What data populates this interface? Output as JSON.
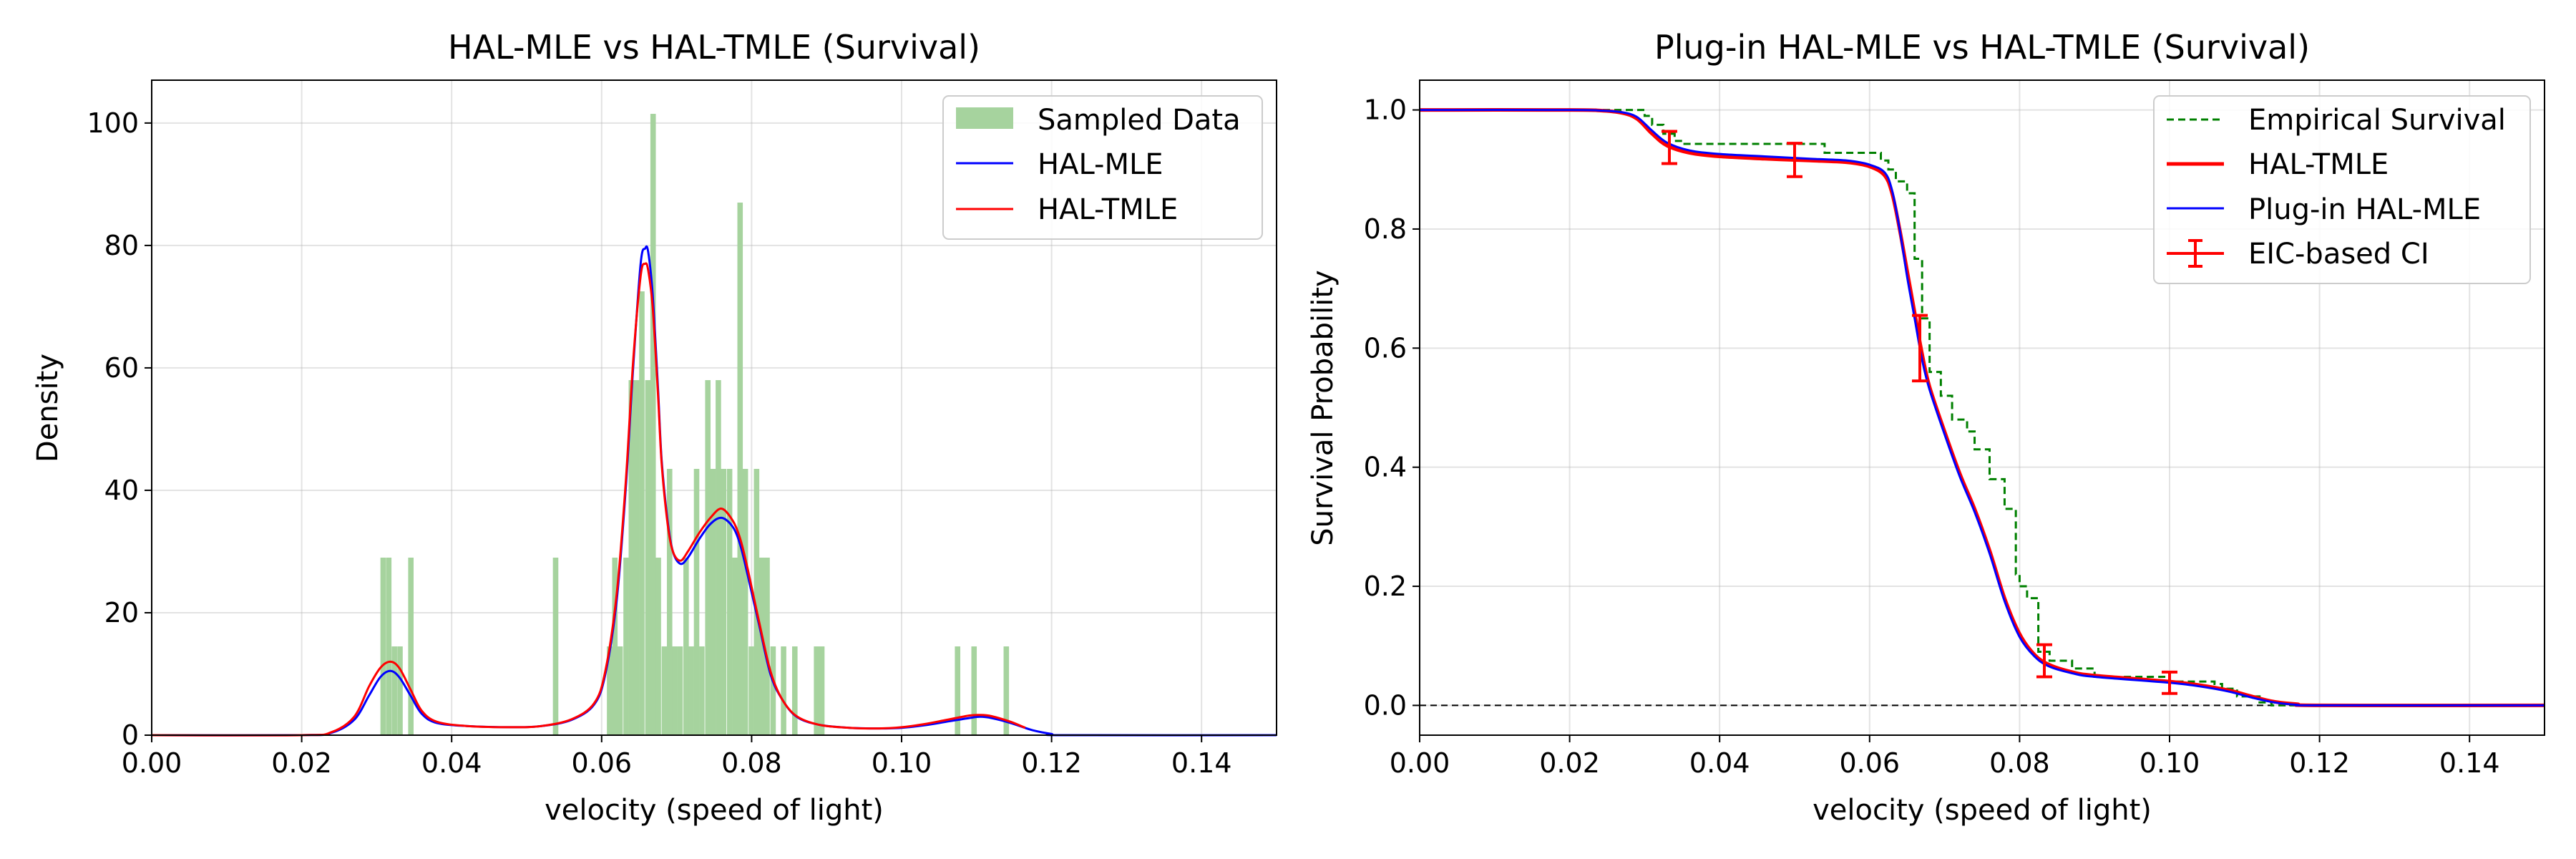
{
  "chart_data": [
    {
      "type": "histogram+line",
      "title": "HAL-MLE vs HAL-TMLE (Survival)",
      "xlabel": "velocity (speed of light)",
      "ylabel": "Density",
      "xlim": [
        0,
        0.15
      ],
      "ylim": [
        0,
        107
      ],
      "xticks": [
        "0.00",
        "0.02",
        "0.04",
        "0.06",
        "0.08",
        "0.10",
        "0.12",
        "0.14"
      ],
      "yticks": [
        "0",
        "20",
        "40",
        "60",
        "80",
        "100"
      ],
      "xtick_values": [
        0,
        0.02,
        0.04,
        0.06,
        0.08,
        0.1,
        0.12,
        0.14
      ],
      "ytick_values": [
        0,
        20,
        40,
        60,
        80,
        100
      ],
      "grid": true,
      "legend_position": "top-right",
      "legend": [
        "Sampled Data",
        "HAL-MLE",
        "HAL-TMLE"
      ],
      "colors": {
        "hist": "#a6d39e",
        "mle": "#0000ff",
        "tmle": "#ff0000"
      },
      "histogram": {
        "name": "Sampled Data",
        "bin_width": 0.000725,
        "bins": [
          {
            "x": 0.0305,
            "h": 29
          },
          {
            "x": 0.03125,
            "h": 29
          },
          {
            "x": 0.032,
            "h": 14.5
          },
          {
            "x": 0.03275,
            "h": 14.5
          },
          {
            "x": 0.0342,
            "h": 29
          },
          {
            "x": 0.0535,
            "h": 29
          },
          {
            "x": 0.0607,
            "h": 14.5
          },
          {
            "x": 0.0614,
            "h": 29
          },
          {
            "x": 0.0621,
            "h": 14.5
          },
          {
            "x": 0.0629,
            "h": 29
          },
          {
            "x": 0.0636,
            "h": 58
          },
          {
            "x": 0.0643,
            "h": 58
          },
          {
            "x": 0.065,
            "h": 72.5
          },
          {
            "x": 0.0658,
            "h": 58
          },
          {
            "x": 0.0665,
            "h": 101.5
          },
          {
            "x": 0.0672,
            "h": 29
          },
          {
            "x": 0.068,
            "h": 14.5
          },
          {
            "x": 0.0687,
            "h": 43.5
          },
          {
            "x": 0.0694,
            "h": 14.5
          },
          {
            "x": 0.0701,
            "h": 14.5
          },
          {
            "x": 0.0709,
            "h": 29
          },
          {
            "x": 0.0716,
            "h": 14.5
          },
          {
            "x": 0.0723,
            "h": 43.5
          },
          {
            "x": 0.073,
            "h": 14.5
          },
          {
            "x": 0.0738,
            "h": 58
          },
          {
            "x": 0.0745,
            "h": 43.5
          },
          {
            "x": 0.0752,
            "h": 58
          },
          {
            "x": 0.0759,
            "h": 43.5
          },
          {
            "x": 0.0767,
            "h": 43.5
          },
          {
            "x": 0.0774,
            "h": 29
          },
          {
            "x": 0.0781,
            "h": 87
          },
          {
            "x": 0.0788,
            "h": 43.5
          },
          {
            "x": 0.0796,
            "h": 14.5
          },
          {
            "x": 0.0803,
            "h": 43.5
          },
          {
            "x": 0.081,
            "h": 29
          },
          {
            "x": 0.0817,
            "h": 29
          },
          {
            "x": 0.0825,
            "h": 14.5
          },
          {
            "x": 0.0839,
            "h": 14.5
          },
          {
            "x": 0.0854,
            "h": 14.5
          },
          {
            "x": 0.0883,
            "h": 14.5
          },
          {
            "x": 0.089,
            "h": 14.5
          },
          {
            "x": 0.1071,
            "h": 14.5
          },
          {
            "x": 0.1093,
            "h": 14.5
          },
          {
            "x": 0.1136,
            "h": 14.5
          }
        ]
      },
      "series": [
        {
          "name": "HAL-MLE",
          "x": [
            0,
            0.02,
            0.024,
            0.027,
            0.029,
            0.0305,
            0.0318,
            0.033,
            0.0345,
            0.036,
            0.038,
            0.042,
            0.048,
            0.052,
            0.056,
            0.059,
            0.0605,
            0.062,
            0.0632,
            0.0642,
            0.0652,
            0.0658,
            0.0662,
            0.0668,
            0.0675,
            0.068,
            0.0688,
            0.0695,
            0.0705,
            0.0715,
            0.073,
            0.0745,
            0.076,
            0.0775,
            0.0785,
            0.0795,
            0.081,
            0.0825,
            0.084,
            0.086,
            0.089,
            0.093,
            0.097,
            0.1,
            0.103,
            0.106,
            0.109,
            0.1105,
            0.112,
            0.1145,
            0.1175,
            0.12,
            0.122,
            0.15
          ],
          "y": [
            0,
            0,
            0.4,
            2.5,
            6.5,
            9.5,
            10.5,
            9.5,
            6.5,
            3.5,
            2,
            1.5,
            1.3,
            1.5,
            2.5,
            5,
            10,
            22,
            40,
            60,
            77,
            79.5,
            79,
            72,
            57,
            45,
            35,
            30,
            28,
            29,
            32,
            34.5,
            35.5,
            34,
            31,
            26,
            18,
            10,
            6,
            3,
            1.7,
            1.2,
            1.1,
            1.2,
            1.6,
            2.2,
            2.8,
            3.0,
            2.8,
            2.0,
            0.8,
            0.2,
            0,
            0
          ]
        },
        {
          "name": "HAL-TMLE",
          "x": [
            0,
            0.02,
            0.024,
            0.027,
            0.029,
            0.0305,
            0.0318,
            0.033,
            0.0345,
            0.036,
            0.038,
            0.042,
            0.048,
            0.052,
            0.056,
            0.059,
            0.0605,
            0.062,
            0.0632,
            0.0642,
            0.0652,
            0.0658,
            0.0662,
            0.0668,
            0.0675,
            0.068,
            0.0688,
            0.0695,
            0.0705,
            0.0715,
            0.073,
            0.0745,
            0.076,
            0.0775,
            0.0785,
            0.0795,
            0.081,
            0.0825,
            0.084,
            0.086,
            0.089,
            0.093,
            0.097,
            0.1,
            0.103,
            0.106,
            0.109,
            0.1105,
            0.112,
            0.1145,
            0.1165
          ],
          "y": [
            0,
            0,
            0.5,
            3,
            8,
            11,
            12,
            11,
            7.5,
            4,
            2.2,
            1.5,
            1.3,
            1.5,
            2.6,
            5.2,
            10.5,
            23,
            41,
            61,
            75,
            77,
            76,
            70,
            56,
            44.5,
            34.5,
            30,
            28.5,
            30,
            33,
            35.5,
            37,
            35,
            32,
            27,
            18.5,
            10.5,
            6,
            3.1,
            1.7,
            1.2,
            1.1,
            1.3,
            1.8,
            2.5,
            3.2,
            3.3,
            3.1,
            2.2,
            1.2
          ]
        }
      ]
    },
    {
      "type": "line",
      "title": "Plug-in HAL-MLE vs HAL-TMLE (Survival)",
      "xlabel": "velocity (speed of light)",
      "ylabel": "Survival Probability",
      "xlim": [
        0,
        0.15
      ],
      "ylim": [
        -0.05,
        1.05
      ],
      "xticks": [
        "0.00",
        "0.02",
        "0.04",
        "0.06",
        "0.08",
        "0.10",
        "0.12",
        "0.14"
      ],
      "yticks": [
        "0.0",
        "0.2",
        "0.4",
        "0.6",
        "0.8",
        "1.0"
      ],
      "xtick_values": [
        0,
        0.02,
        0.04,
        0.06,
        0.08,
        0.1,
        0.12,
        0.14
      ],
      "ytick_values": [
        0,
        0.2,
        0.4,
        0.6,
        0.8,
        1.0
      ],
      "grid": true,
      "legend_position": "top-right",
      "legend": [
        "Empirical Survival",
        "HAL-TMLE",
        "Plug-in HAL-MLE",
        "EIC-based CI"
      ],
      "colors": {
        "empirical": "#008000",
        "tmle": "#ff0000",
        "mle": "#0000ff",
        "ci": "#ff0000",
        "zero": "#000000"
      },
      "reference_line": {
        "y": 0,
        "style": "dashed",
        "color": "#000000"
      },
      "empirical_step": {
        "name": "Empirical Survival",
        "x": [
          0,
          0.028,
          0.03,
          0.031,
          0.0325,
          0.034,
          0.035,
          0.053,
          0.054,
          0.06,
          0.0615,
          0.0625,
          0.0635,
          0.065,
          0.066,
          0.067,
          0.068,
          0.0695,
          0.071,
          0.073,
          0.074,
          0.076,
          0.078,
          0.0795,
          0.08,
          0.081,
          0.0825,
          0.084,
          0.087,
          0.09,
          0.1,
          0.106,
          0.107,
          0.109,
          0.112,
          0.1136,
          0.15
        ],
        "y": [
          1.0,
          1.0,
          0.99,
          0.975,
          0.96,
          0.948,
          0.943,
          0.943,
          0.928,
          0.928,
          0.915,
          0.9,
          0.88,
          0.86,
          0.75,
          0.65,
          0.56,
          0.52,
          0.48,
          0.46,
          0.43,
          0.38,
          0.33,
          0.22,
          0.2,
          0.18,
          0.09,
          0.075,
          0.062,
          0.048,
          0.04,
          0.036,
          0.028,
          0.015,
          0.005,
          0.0,
          0.0
        ]
      },
      "series": [
        {
          "name": "HAL-TMLE",
          "x": [
            0,
            0.02,
            0.024,
            0.027,
            0.029,
            0.031,
            0.033,
            0.036,
            0.04,
            0.046,
            0.052,
            0.057,
            0.06,
            0.062,
            0.063,
            0.064,
            0.065,
            0.066,
            0.067,
            0.068,
            0.07,
            0.072,
            0.074,
            0.076,
            0.078,
            0.08,
            0.082,
            0.084,
            0.087,
            0.09,
            0.1,
            0.104,
            0.108,
            0.111,
            0.114,
            0.117,
            0.12,
            0.15
          ],
          "y": [
            1.0,
            1.0,
            0.999,
            0.995,
            0.985,
            0.96,
            0.94,
            0.928,
            0.922,
            0.918,
            0.915,
            0.912,
            0.905,
            0.89,
            0.86,
            0.8,
            0.73,
            0.66,
            0.59,
            0.535,
            0.46,
            0.39,
            0.33,
            0.26,
            0.18,
            0.12,
            0.085,
            0.068,
            0.056,
            0.05,
            0.04,
            0.034,
            0.025,
            0.015,
            0.006,
            0.002,
            0.0,
            0.0
          ]
        },
        {
          "name": "Plug-in HAL-MLE",
          "x": [
            0,
            0.02,
            0.024,
            0.027,
            0.029,
            0.031,
            0.033,
            0.036,
            0.04,
            0.046,
            0.052,
            0.057,
            0.06,
            0.062,
            0.063,
            0.064,
            0.065,
            0.066,
            0.067,
            0.068,
            0.07,
            0.072,
            0.074,
            0.076,
            0.078,
            0.08,
            0.082,
            0.084,
            0.087,
            0.09,
            0.1,
            0.104,
            0.108,
            0.111,
            0.114,
            0.117,
            0.12,
            0.15
          ],
          "y": [
            1.0,
            1.0,
            0.999,
            0.996,
            0.988,
            0.965,
            0.945,
            0.932,
            0.926,
            0.922,
            0.918,
            0.915,
            0.908,
            0.895,
            0.865,
            0.8,
            0.72,
            0.65,
            0.58,
            0.53,
            0.455,
            0.385,
            0.325,
            0.255,
            0.175,
            0.115,
            0.082,
            0.065,
            0.054,
            0.048,
            0.038,
            0.032,
            0.023,
            0.013,
            0.005,
            0.001,
            0.0,
            0.0
          ]
        }
      ],
      "ci": {
        "name": "EIC-based CI",
        "x": [
          0.0333,
          0.05,
          0.0667,
          0.0833,
          0.1
        ],
        "y": [
          0.937,
          0.916,
          0.6,
          0.075,
          0.038
        ],
        "lower": [
          0.91,
          0.888,
          0.545,
          0.048,
          0.02
        ],
        "upper": [
          0.964,
          0.944,
          0.655,
          0.102,
          0.056
        ]
      }
    }
  ]
}
